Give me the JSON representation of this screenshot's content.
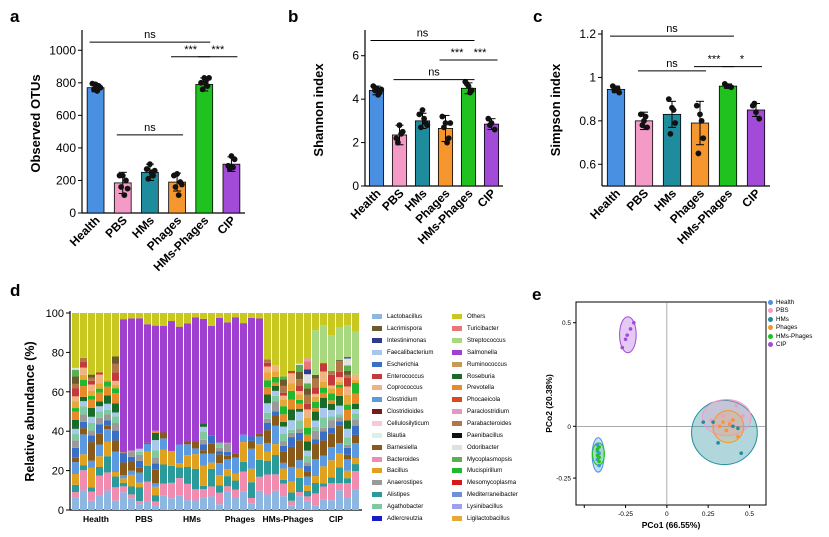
{
  "colors": {
    "Health": "#4a90e2",
    "PBS": "#f39ac7",
    "HMs": "#1f8c9e",
    "Phages": "#f5962f",
    "HMs-Phages": "#1fc21f",
    "CIP": "#a24bd9"
  },
  "chart_data": [
    {
      "id": "a",
      "type": "bar",
      "panel_label": "a",
      "ylabel": "Observed OTUs",
      "categories": [
        "Health",
        "PBS",
        "HMs",
        "Phages",
        "HMs-Phages",
        "CIP"
      ],
      "values": [
        770,
        185,
        250,
        190,
        790,
        300
      ],
      "errors": [
        25,
        65,
        50,
        55,
        40,
        45
      ],
      "points": [
        [
          795,
          790,
          780,
          760,
          750,
          770
        ],
        [
          230,
          230,
          200,
          160,
          110,
          150
        ],
        [
          270,
          300,
          230,
          210,
          250,
          260
        ],
        [
          230,
          240,
          190,
          160,
          110,
          175
        ],
        [
          800,
          830,
          780,
          760,
          810,
          830
        ],
        [
          290,
          350,
          330,
          270,
          280
        ]
      ],
      "ylim": [
        0,
        1100
      ],
      "yticks": [
        0,
        200,
        400,
        600,
        800,
        1000
      ],
      "significance": [
        {
          "from": "Health",
          "to": "HMs-Phages",
          "label": "ns",
          "level": 1050
        },
        {
          "from": "PBS",
          "to": "Phages",
          "label": "ns",
          "level": 480
        },
        {
          "from": "Phages",
          "to": "HMs-Phages",
          "label": "***",
          "level": 960
        },
        {
          "from": "HMs-Phages",
          "to": "CIP",
          "label": "***",
          "level": 960
        }
      ]
    },
    {
      "id": "b",
      "type": "bar",
      "panel_label": "b",
      "ylabel": "Shannon index",
      "categories": [
        "Health",
        "PBS",
        "HMs",
        "Phages",
        "HMs-Phages",
        "CIP"
      ],
      "values": [
        4.4,
        2.35,
        3.0,
        2.65,
        4.5,
        2.85
      ],
      "errors": [
        0.2,
        0.45,
        0.35,
        0.6,
        0.25,
        0.25
      ],
      "points": [
        [
          4.6,
          4.5,
          4.3,
          4.4,
          4.2,
          4.45
        ],
        [
          2.2,
          2.8,
          2.5,
          2.0,
          2.4
        ],
        [
          3.3,
          3.5,
          2.9,
          2.7,
          3.1,
          2.8
        ],
        [
          3.2,
          2.9,
          2.2,
          2.7,
          2.0,
          2.9
        ],
        [
          4.8,
          4.6,
          4.4,
          4.7,
          4.3
        ],
        [
          3.1,
          2.9,
          2.6,
          2.8
        ]
      ],
      "ylim": [
        0,
        7
      ],
      "yticks": [
        0,
        2,
        4,
        6
      ],
      "significance": [
        {
          "from": "Health",
          "to": "HMs-Phages",
          "label": "ns",
          "level": 6.7
        },
        {
          "from": "PBS",
          "to": "HMs-Phages",
          "label": "ns",
          "level": 4.9
        },
        {
          "from": "Phages",
          "to": "HMs-Phages",
          "label": "***",
          "level": 5.8
        },
        {
          "from": "HMs-Phages",
          "to": "CIP",
          "label": "***",
          "level": 5.8
        }
      ]
    },
    {
      "id": "c",
      "type": "bar",
      "panel_label": "c",
      "ylabel": "Simpson index",
      "categories": [
        "Health",
        "PBS",
        "HMs",
        "Phages",
        "HMs-Phages",
        "CIP"
      ],
      "values": [
        0.945,
        0.8,
        0.83,
        0.79,
        0.96,
        0.85
      ],
      "errors": [
        0.015,
        0.04,
        0.06,
        0.1,
        0.01,
        0.03
      ],
      "points": [
        [
          0.96,
          0.95,
          0.93,
          0.94,
          0.95
        ],
        [
          0.83,
          0.8,
          0.77,
          0.78,
          0.82
        ],
        [
          0.9,
          0.86,
          0.79,
          0.74,
          0.85
        ],
        [
          0.87,
          0.83,
          0.72,
          0.65,
          0.8
        ],
        [
          0.97,
          0.96,
          0.955,
          0.96
        ],
        [
          0.87,
          0.84,
          0.81,
          0.88
        ]
      ],
      "ylim": [
        0.5,
        1.2
      ],
      "yticks": [
        0.6,
        0.8,
        1.0,
        1.2
      ],
      "significance": [
        {
          "from": "Health",
          "to": "HMs-Phages",
          "label": "ns",
          "level": 1.19
        },
        {
          "from": "PBS",
          "to": "Phages",
          "label": "ns",
          "level": 1.03
        },
        {
          "from": "Phages",
          "to": "HMs-Phages",
          "label": "***",
          "level": 1.05
        },
        {
          "from": "HMs-Phages",
          "to": "CIP",
          "label": "*",
          "level": 1.05
        }
      ]
    },
    {
      "id": "d",
      "type": "bar",
      "panel_label": "d",
      "ylabel": "Relative abundance (%)",
      "yticks": [
        0,
        20,
        40,
        60,
        80,
        100
      ],
      "groups": [
        "Health",
        "PBS",
        "HMs",
        "Phages",
        "HMs-Phages",
        "CIP"
      ],
      "legend": [
        {
          "name": "Lactobacillus",
          "color": "#8db6e0"
        },
        {
          "name": "Lacrimispora",
          "color": "#6a5a2e"
        },
        {
          "name": "Intestinimonas",
          "color": "#2e3a8c"
        },
        {
          "name": "Faecalibacterium",
          "color": "#a7c8ea"
        },
        {
          "name": "Escherichia",
          "color": "#3a6fc8"
        },
        {
          "name": "Enterococcus",
          "color": "#c43a3a"
        },
        {
          "name": "Coprococcus",
          "color": "#f0b482"
        },
        {
          "name": "Clostridium",
          "color": "#5b9ae0"
        },
        {
          "name": "Clostridioides",
          "color": "#7a1a1a"
        },
        {
          "name": "Cellulosilyticum",
          "color": "#f7c8d8"
        },
        {
          "name": "Blautia",
          "color": "#d9f0e8"
        },
        {
          "name": "Barnesiella",
          "color": "#8a5a1a"
        },
        {
          "name": "Bacteroides",
          "color": "#f08cb0"
        },
        {
          "name": "Bacillus",
          "color": "#e0a020"
        },
        {
          "name": "Anaerostipes",
          "color": "#9a9a9a"
        },
        {
          "name": "Alistipes",
          "color": "#2a9a9a"
        },
        {
          "name": "Agathobacter",
          "color": "#80c8a0"
        },
        {
          "name": "Adlercreutzia",
          "color": "#1a1ac8"
        },
        {
          "name": "Others",
          "color": "#c8c820"
        },
        {
          "name": "Turicibacter",
          "color": "#e87878"
        },
        {
          "name": "Streptococcus",
          "color": "#a8d880"
        },
        {
          "name": "Salmonella",
          "color": "#a040d0"
        },
        {
          "name": "Ruminococcus",
          "color": "#c89858"
        },
        {
          "name": "Roseburia",
          "color": "#1a6a2a"
        },
        {
          "name": "Prevotella",
          "color": "#e88a2a"
        },
        {
          "name": "Phocaeicola",
          "color": "#d84a18"
        },
        {
          "name": "Paraclostridium",
          "color": "#e898c0"
        },
        {
          "name": "Parabacteroides",
          "color": "#b07848"
        },
        {
          "name": "Paenibacillus",
          "color": "#101010"
        },
        {
          "name": "Odoribacter",
          "color": "#e0e0e0"
        },
        {
          "name": "Mycoplasmopsis",
          "color": "#5ab050"
        },
        {
          "name": "Mucispirillum",
          "color": "#20b830"
        },
        {
          "name": "Mesomycoplasma",
          "color": "#d81818"
        },
        {
          "name": "Mediterraneibacter",
          "color": "#7090d8"
        },
        {
          "name": "Lysinibacillus",
          "color": "#a0a0f0"
        },
        {
          "name": "Ligilactobacillus",
          "color": "#e8a838"
        }
      ]
    },
    {
      "id": "e",
      "type": "scatter",
      "panel_label": "e",
      "xlabel": "PCo1 (66.55%)",
      "ylabel": "PCo2 (20.38%)",
      "xlim": [
        -0.55,
        0.6
      ],
      "ylim": [
        -0.38,
        0.6
      ],
      "xticks": [
        -0.5,
        -0.25,
        0,
        0.25,
        0.5
      ],
      "xtick_labels": [
        "",
        "-0.25",
        "0",
        "0.25",
        "0.5"
      ],
      "yticks": [
        -0.25,
        0,
        0.5
      ],
      "ytick_labels": [
        "-0.25",
        "0",
        "0.5"
      ],
      "series": [
        {
          "name": "Health",
          "points": [
            [
              -0.42,
              -0.09
            ],
            [
              -0.41,
              -0.13
            ],
            [
              -0.42,
              -0.16
            ],
            [
              -0.41,
              -0.19
            ],
            [
              -0.42,
              -0.12
            ]
          ]
        },
        {
          "name": "PBS",
          "points": [
            [
              0.27,
              0.03
            ],
            [
              0.34,
              0.05
            ],
            [
              0.42,
              0.1
            ],
            [
              0.38,
              0.02
            ],
            [
              0.3,
              0.0
            ],
            [
              0.46,
              0.05
            ]
          ]
        },
        {
          "name": "HMs",
          "points": [
            [
              0.22,
              0.02
            ],
            [
              0.43,
              -0.01
            ],
            [
              0.31,
              -0.08
            ],
            [
              0.28,
              0.02
            ],
            [
              0.45,
              -0.13
            ],
            [
              0.4,
              0.0
            ]
          ]
        },
        {
          "name": "Phages",
          "points": [
            [
              0.34,
              0.02
            ],
            [
              0.36,
              -0.02
            ],
            [
              0.4,
              0.03
            ],
            [
              0.43,
              -0.05
            ],
            [
              0.32,
              0.0
            ],
            [
              0.38,
              0.01
            ]
          ]
        },
        {
          "name": "HMs-Phages",
          "points": [
            [
              -0.41,
              -0.1
            ],
            [
              -0.42,
              -0.14
            ],
            [
              -0.41,
              -0.17
            ],
            [
              -0.42,
              -0.11
            ],
            [
              -0.41,
              -0.15
            ]
          ]
        },
        {
          "name": "CIP",
          "points": [
            [
              -0.25,
              0.42
            ],
            [
              -0.22,
              0.47
            ],
            [
              -0.27,
              0.38
            ],
            [
              -0.2,
              0.5
            ],
            [
              -0.24,
              0.44
            ]
          ]
        }
      ]
    }
  ]
}
